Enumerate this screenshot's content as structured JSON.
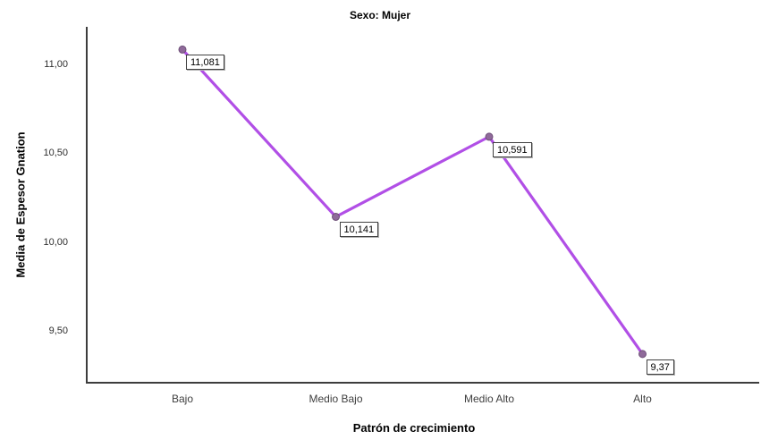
{
  "chart_data": {
    "type": "line",
    "title": "Sexo: Mujer",
    "xlabel": "Patrón de crecimiento",
    "ylabel": "Media de Espesor Gnation",
    "categories": [
      "Bajo",
      "Medio Bajo",
      "Medio Alto",
      "Alto"
    ],
    "series": [
      {
        "name": "Media de Espesor Gnation",
        "values": [
          11.081,
          10.141,
          10.591,
          9.37
        ]
      }
    ],
    "point_labels": [
      "11,081",
      "10,141",
      "10,591",
      "9,37"
    ],
    "yticks": [
      {
        "value": 11.0,
        "label": "11,00"
      },
      {
        "value": 10.5,
        "label": "10,50"
      },
      {
        "value": 10.0,
        "label": "10,00"
      },
      {
        "value": 9.5,
        "label": "9,50"
      }
    ],
    "ylim": [
      9.21,
      11.21
    ],
    "grid": false,
    "legend_position": "none",
    "colors": {
      "line": "#b14fe6",
      "marker_fill": "#8f6a9a",
      "marker_stroke": "#6e4f78",
      "axis": "#3d3d3d",
      "tick_text": "#2e2e2e",
      "category_text": "#3f3f3f",
      "label_box_border": "#404040"
    }
  }
}
